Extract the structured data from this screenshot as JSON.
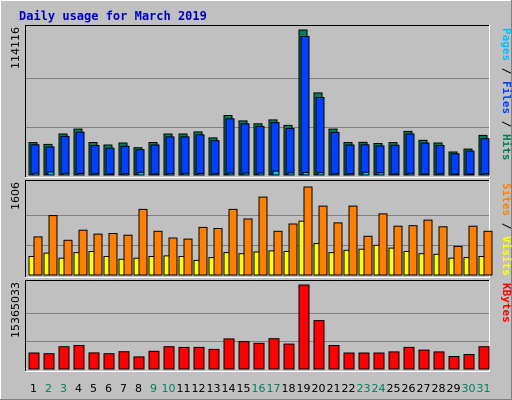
{
  "chart_data": {
    "type": "bar",
    "title": "Daily usage for March 2019",
    "days": [
      "1",
      "2",
      "3",
      "4",
      "5",
      "6",
      "7",
      "8",
      "9",
      "10",
      "11",
      "12",
      "13",
      "14",
      "15",
      "16",
      "17",
      "18",
      "19",
      "20",
      "21",
      "22",
      "23",
      "24",
      "25",
      "26",
      "27",
      "28",
      "29",
      "30",
      "31"
    ],
    "weekend_days": [
      "2",
      "3",
      "9",
      "10",
      "16",
      "17",
      "23",
      "24",
      "30",
      "31"
    ],
    "colors": {
      "weekday_label": "#000000",
      "weekend_label": "#00805c",
      "hits": "#00805c",
      "files": "#0040ff",
      "pages": "#00c0ff",
      "visits": "#ffff00",
      "sites": "#ff8000",
      "kbytes": "#ff0000",
      "title": "#0000c0"
    },
    "panels": {
      "top": {
        "ymax_label": "114116",
        "ymax": 114116,
        "legend": [
          {
            "text": "Pages",
            "color": "#00c0ff"
          },
          {
            "text": " / ",
            "color": "#000000"
          },
          {
            "text": "Files",
            "color": "#0040ff"
          },
          {
            "text": " / ",
            "color": "#000000"
          },
          {
            "text": "Hits",
            "color": "#00805c"
          }
        ],
        "series": [
          {
            "name": "Hits",
            "color": "#00805c",
            "values": [
              25500,
              24100,
              32300,
              36100,
              25600,
              23600,
              25200,
              21500,
              25600,
              32300,
              32300,
              33900,
              29200,
              46800,
              42600,
              40300,
              43400,
              39000,
              114116,
              64600,
              36100,
              25600,
              25700,
              24800,
              25500,
              34300,
              27300,
              25200,
              18100,
              20400,
              31200
            ]
          },
          {
            "name": "Files",
            "color": "#0040ff",
            "values": [
              23800,
              22000,
              30400,
              33700,
              23200,
              21100,
              22600,
              19900,
              23600,
              30000,
              30000,
              31600,
              27000,
              44200,
              40300,
              38200,
              41200,
              36600,
              109000,
              61000,
              33500,
              23600,
              23800,
              22900,
              23400,
              32300,
              25100,
              23200,
              16700,
              18800,
              28600
            ]
          },
          {
            "name": "Pages",
            "color": "#00c0ff",
            "values": [
              1500,
              2400,
              1300,
              1200,
              1000,
              900,
              1000,
              2100,
              900,
              1200,
              1300,
              1200,
              1000,
              1500,
              1500,
              1500,
              3100,
              1700,
              2000,
              1800,
              1000,
              1000,
              2100,
              1800,
              900,
              1300,
              900,
              1000,
              500,
              800,
              1000
            ]
          }
        ]
      },
      "middle": {
        "ymax_label": "1606",
        "ymax": 1606,
        "legend": [
          {
            "text": "Sites",
            "color": "#ff8000"
          },
          {
            "text": " / ",
            "color": "#000000"
          },
          {
            "text": "Visits",
            "color": "#ffff00"
          }
        ],
        "series": [
          {
            "name": "Visits",
            "color": "#ffff00",
            "values": [
              330,
              390,
              300,
              400,
              420,
              330,
              280,
              300,
              330,
              340,
              330,
              260,
              310,
              400,
              380,
              410,
              430,
              420,
              960,
              560,
              400,
              440,
              460,
              530,
              480,
              420,
              380,
              370,
              300,
              310,
              330
            ]
          },
          {
            "name": "Sites",
            "color": "#ff8000",
            "values": [
              680,
              1060,
              620,
              800,
              730,
              740,
              710,
              1170,
              780,
              660,
              640,
              850,
              830,
              1170,
              1000,
              1390,
              780,
              910,
              1570,
              1230,
              930,
              1230,
              690,
              1090,
              870,
              880,
              980,
              860,
              510,
              870,
              780
            ]
          }
        ]
      },
      "bottom": {
        "ymax_label": "15365033",
        "ymax": 15365033,
        "legend": [
          {
            "text": "KBytes",
            "color": "#ff0000"
          }
        ],
        "series": [
          {
            "name": "KBytes",
            "color": "#ff0000",
            "values": [
              2930000,
              2800000,
              4080000,
              4290000,
              2950000,
              2800000,
              3170000,
              2210000,
              3240000,
              4080000,
              3950000,
              3950000,
              3590000,
              5510000,
              5020000,
              4710000,
              5550000,
              4550000,
              15365033,
              8850000,
              4290000,
              2930000,
              2930000,
              2930000,
              3120000,
              3950000,
              3450000,
              3120000,
              2280000,
              2650000,
              4070000
            ]
          }
        ]
      }
    }
  }
}
